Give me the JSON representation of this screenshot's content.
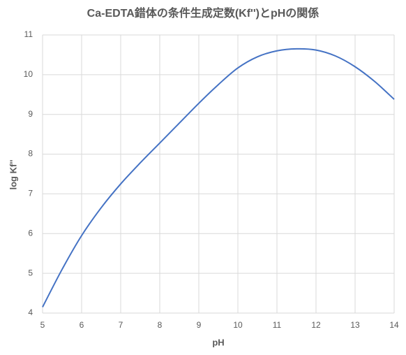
{
  "chart_data": {
    "type": "line",
    "title": "Ca-EDTA錯体の条件生成定数(Kf'')とpHの関係",
    "x_label": "pH",
    "y_label": "log Kf''",
    "x": [
      5,
      5.5,
      6,
      6.5,
      7,
      7.5,
      8,
      8.5,
      9,
      9.5,
      10,
      10.5,
      11,
      11.5,
      12,
      12.5,
      13,
      13.5,
      14
    ],
    "series": [
      {
        "name": "log Kf''",
        "color": "#4472c4",
        "values": [
          4.15,
          5.1,
          5.95,
          6.65,
          7.25,
          7.78,
          8.28,
          8.78,
          9.28,
          9.75,
          10.17,
          10.45,
          10.6,
          10.65,
          10.62,
          10.47,
          10.2,
          9.83,
          9.38
        ]
      }
    ],
    "xlim": [
      5,
      14
    ],
    "xticks": [
      5,
      6,
      7,
      8,
      9,
      10,
      11,
      12,
      13,
      14
    ],
    "ylim": [
      4,
      11
    ],
    "yticks": [
      4,
      5,
      6,
      7,
      8,
      9,
      10,
      11
    ],
    "grid": true
  }
}
